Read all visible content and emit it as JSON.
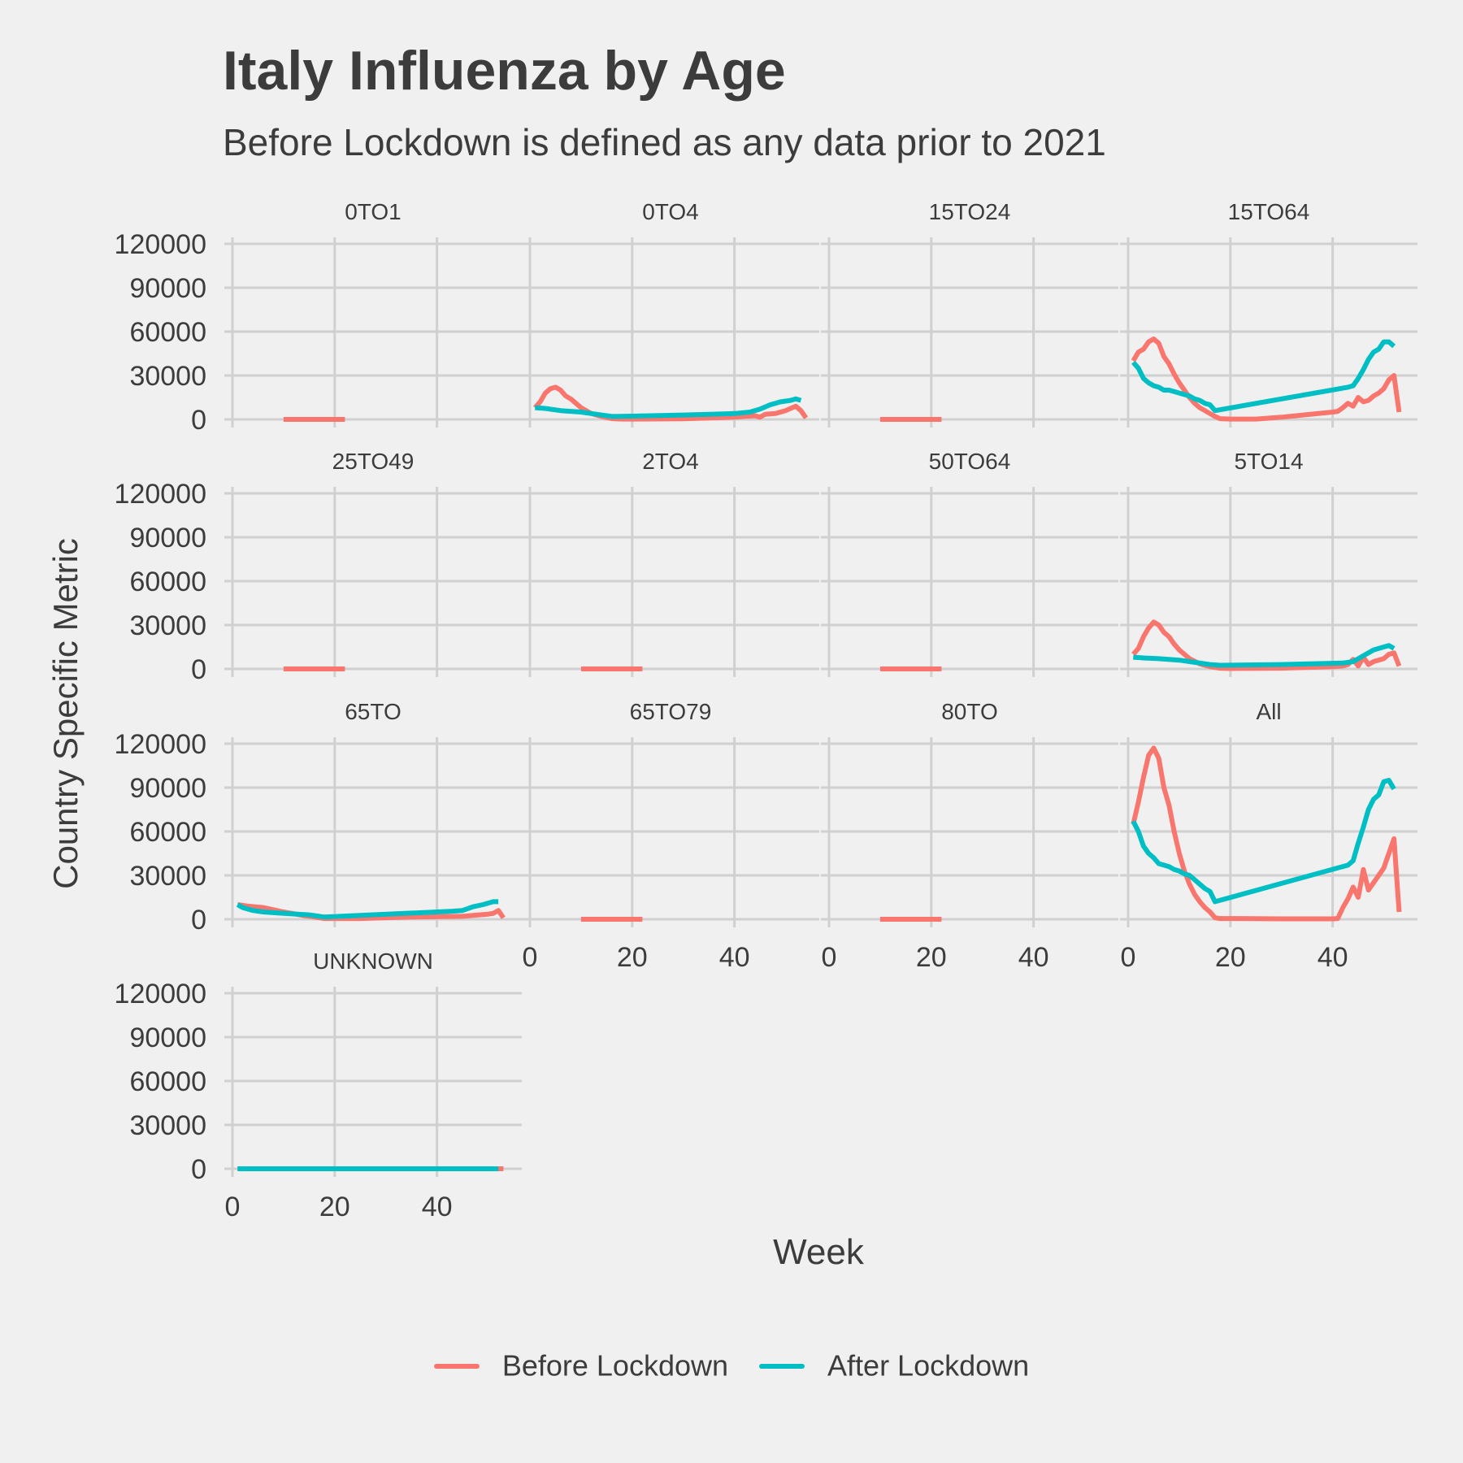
{
  "title": "Italy Influenza by Age",
  "subtitle": "Before Lockdown is defined as any data prior to 2021",
  "colors": {
    "before": "#F8766D",
    "after": "#00BFC4",
    "background": "#f0f0f0",
    "grid": "#d0d0d0",
    "text": "#3c3c3c"
  },
  "legend": {
    "placement": "bottom",
    "items": [
      {
        "label": "Before Lockdown",
        "color": "#F8766D"
      },
      {
        "label": "After Lockdown",
        "color": "#00BFC4"
      }
    ]
  },
  "chart_data": {
    "type": "line",
    "title": "Italy Influenza by Age",
    "subtitle": "Before Lockdown is defined as any data prior to 2021",
    "xlabel": "Week",
    "ylabel": "Country Specific Metric",
    "xlim": [
      0,
      55
    ],
    "ylim": [
      0,
      120000
    ],
    "x_ticks": [
      0,
      20,
      40
    ],
    "y_ticks": [
      0,
      30000,
      60000,
      90000,
      120000
    ],
    "y_tick_labels": [
      "0",
      "30000",
      "60000",
      "90000",
      "120000"
    ],
    "grid": true,
    "legend_placement": "bottom",
    "facets": [
      {
        "label": "0TO1",
        "before": [
          [
            10,
            0
          ],
          [
            22,
            0
          ]
        ],
        "after": []
      },
      {
        "label": "0TO4",
        "before": [
          [
            1,
            8000
          ],
          [
            2,
            12000
          ],
          [
            3,
            18000
          ],
          [
            4,
            21000
          ],
          [
            5,
            22000
          ],
          [
            6,
            20000
          ],
          [
            7,
            16000
          ],
          [
            8,
            14000
          ],
          [
            9,
            11000
          ],
          [
            10,
            8000
          ],
          [
            12,
            4000
          ],
          [
            14,
            2000
          ],
          [
            16,
            500
          ],
          [
            18,
            200
          ],
          [
            20,
            200
          ],
          [
            30,
            400
          ],
          [
            40,
            1500
          ],
          [
            44,
            2500
          ],
          [
            45,
            1500
          ],
          [
            46,
            3500
          ],
          [
            48,
            4000
          ],
          [
            50,
            6000
          ],
          [
            52,
            9000
          ],
          [
            53,
            6000
          ],
          [
            54,
            1000
          ]
        ],
        "after": [
          [
            1,
            8000
          ],
          [
            3,
            7500
          ],
          [
            6,
            6000
          ],
          [
            10,
            5000
          ],
          [
            13,
            3500
          ],
          [
            16,
            2000
          ],
          [
            20,
            2200
          ],
          [
            30,
            3000
          ],
          [
            40,
            4000
          ],
          [
            43,
            5000
          ],
          [
            45,
            7000
          ],
          [
            47,
            10000
          ],
          [
            49,
            12000
          ],
          [
            51,
            13000
          ],
          [
            52,
            14000
          ],
          [
            53,
            13000
          ]
        ]
      },
      {
        "label": "15TO24",
        "before": [
          [
            10,
            0
          ],
          [
            22,
            0
          ]
        ],
        "after": []
      },
      {
        "label": "15TO64",
        "before": [
          [
            1,
            40000
          ],
          [
            2,
            46000
          ],
          [
            3,
            48000
          ],
          [
            4,
            53000
          ],
          [
            5,
            55000
          ],
          [
            6,
            52000
          ],
          [
            7,
            43000
          ],
          [
            8,
            38000
          ],
          [
            9,
            31000
          ],
          [
            10,
            25000
          ],
          [
            11,
            20000
          ],
          [
            12,
            15000
          ],
          [
            13,
            11000
          ],
          [
            14,
            8000
          ],
          [
            15,
            6000
          ],
          [
            16,
            4000
          ],
          [
            17,
            2000
          ],
          [
            18,
            500
          ],
          [
            20,
            200
          ],
          [
            25,
            200
          ],
          [
            30,
            1500
          ],
          [
            40,
            5000
          ],
          [
            41,
            5500
          ],
          [
            42,
            8000
          ],
          [
            43,
            11000
          ],
          [
            44,
            9000
          ],
          [
            45,
            15000
          ],
          [
            46,
            12000
          ],
          [
            47,
            13000
          ],
          [
            48,
            16000
          ],
          [
            49,
            18000
          ],
          [
            50,
            21000
          ],
          [
            51,
            27000
          ],
          [
            52,
            30000
          ],
          [
            53,
            5000
          ]
        ],
        "after": [
          [
            1,
            39000
          ],
          [
            2,
            35000
          ],
          [
            3,
            28000
          ],
          [
            4,
            25000
          ],
          [
            5,
            23000
          ],
          [
            6,
            22000
          ],
          [
            7,
            20000
          ],
          [
            8,
            20000
          ],
          [
            9,
            19000
          ],
          [
            10,
            18000
          ],
          [
            11,
            17000
          ],
          [
            12,
            16000
          ],
          [
            13,
            14000
          ],
          [
            14,
            13000
          ],
          [
            15,
            11000
          ],
          [
            16,
            10000
          ],
          [
            17,
            6000
          ],
          [
            43,
            22000
          ],
          [
            44,
            23000
          ],
          [
            45,
            28000
          ],
          [
            46,
            34000
          ],
          [
            47,
            41000
          ],
          [
            48,
            46000
          ],
          [
            49,
            48000
          ],
          [
            50,
            53000
          ],
          [
            51,
            53000
          ],
          [
            52,
            50000
          ]
        ]
      },
      {
        "label": "25TO49",
        "before": [
          [
            10,
            0
          ],
          [
            22,
            0
          ]
        ],
        "after": []
      },
      {
        "label": "2TO4",
        "before": [
          [
            10,
            0
          ],
          [
            22,
            0
          ]
        ],
        "after": []
      },
      {
        "label": "50TO64",
        "before": [
          [
            10,
            0
          ],
          [
            22,
            0
          ]
        ],
        "after": []
      },
      {
        "label": "5TO14",
        "before": [
          [
            1,
            10000
          ],
          [
            2,
            14000
          ],
          [
            3,
            22000
          ],
          [
            4,
            28000
          ],
          [
            5,
            32000
          ],
          [
            6,
            30000
          ],
          [
            7,
            25000
          ],
          [
            8,
            22000
          ],
          [
            9,
            17000
          ],
          [
            10,
            13000
          ],
          [
            12,
            7000
          ],
          [
            14,
            3500
          ],
          [
            16,
            1500
          ],
          [
            18,
            500
          ],
          [
            20,
            300
          ],
          [
            30,
            500
          ],
          [
            40,
            1500
          ],
          [
            42,
            2000
          ],
          [
            43,
            3000
          ],
          [
            44,
            6500
          ],
          [
            45,
            2000
          ],
          [
            46,
            8000
          ],
          [
            47,
            3000
          ],
          [
            48,
            5000
          ],
          [
            50,
            7000
          ],
          [
            51,
            10000
          ],
          [
            52,
            11000
          ],
          [
            53,
            2000
          ]
        ],
        "after": [
          [
            1,
            8000
          ],
          [
            3,
            7500
          ],
          [
            6,
            7000
          ],
          [
            10,
            6000
          ],
          [
            13,
            4500
          ],
          [
            16,
            3000
          ],
          [
            18,
            2500
          ],
          [
            30,
            3000
          ],
          [
            42,
            4000
          ],
          [
            44,
            5000
          ],
          [
            46,
            9000
          ],
          [
            48,
            13000
          ],
          [
            50,
            15000
          ],
          [
            51,
            16000
          ],
          [
            52,
            14000
          ]
        ]
      },
      {
        "label": "65TO",
        "before": [
          [
            1,
            10000
          ],
          [
            3,
            9000
          ],
          [
            6,
            8000
          ],
          [
            10,
            5000
          ],
          [
            14,
            2500
          ],
          [
            18,
            500
          ],
          [
            25,
            500
          ],
          [
            35,
            1500
          ],
          [
            45,
            2000
          ],
          [
            50,
            3500
          ],
          [
            51,
            4000
          ],
          [
            52,
            6000
          ],
          [
            53,
            1000
          ]
        ],
        "after": [
          [
            1,
            10000
          ],
          [
            2,
            8000
          ],
          [
            4,
            6000
          ],
          [
            6,
            5000
          ],
          [
            10,
            4000
          ],
          [
            15,
            3000
          ],
          [
            18,
            1500
          ],
          [
            43,
            5500
          ],
          [
            45,
            6000
          ],
          [
            47,
            8500
          ],
          [
            49,
            10000
          ],
          [
            51,
            12000
          ],
          [
            52,
            12000
          ]
        ]
      },
      {
        "label": "65TO79",
        "before": [
          [
            10,
            0
          ],
          [
            22,
            0
          ]
        ],
        "after": []
      },
      {
        "label": "80TO",
        "before": [
          [
            10,
            0
          ],
          [
            22,
            0
          ]
        ],
        "after": []
      },
      {
        "label": "All",
        "before": [
          [
            1,
            65000
          ],
          [
            2,
            80000
          ],
          [
            3,
            97000
          ],
          [
            4,
            112000
          ],
          [
            5,
            117000
          ],
          [
            6,
            110000
          ],
          [
            7,
            90000
          ],
          [
            8,
            78000
          ],
          [
            9,
            60000
          ],
          [
            10,
            45000
          ],
          [
            11,
            33000
          ],
          [
            12,
            24000
          ],
          [
            13,
            17000
          ],
          [
            14,
            12000
          ],
          [
            15,
            8000
          ],
          [
            16,
            5000
          ],
          [
            17,
            1000
          ],
          [
            18,
            500
          ],
          [
            20,
            500
          ],
          [
            30,
            300
          ],
          [
            40,
            300
          ],
          [
            41,
            500
          ],
          [
            42,
            8000
          ],
          [
            43,
            14000
          ],
          [
            44,
            22000
          ],
          [
            45,
            15000
          ],
          [
            46,
            34000
          ],
          [
            47,
            20000
          ],
          [
            48,
            25000
          ],
          [
            49,
            30000
          ],
          [
            50,
            35000
          ],
          [
            51,
            45000
          ],
          [
            52,
            55000
          ],
          [
            53,
            5000
          ]
        ],
        "after": [
          [
            1,
            67000
          ],
          [
            2,
            60000
          ],
          [
            3,
            50000
          ],
          [
            4,
            45000
          ],
          [
            5,
            42000
          ],
          [
            6,
            38000
          ],
          [
            7,
            37000
          ],
          [
            8,
            36000
          ],
          [
            9,
            34000
          ],
          [
            10,
            33000
          ],
          [
            11,
            31000
          ],
          [
            12,
            30000
          ],
          [
            13,
            27000
          ],
          [
            14,
            24000
          ],
          [
            15,
            21000
          ],
          [
            16,
            19000
          ],
          [
            17,
            12000
          ],
          [
            43,
            37000
          ],
          [
            44,
            40000
          ],
          [
            45,
            52000
          ],
          [
            46,
            63000
          ],
          [
            47,
            75000
          ],
          [
            48,
            82000
          ],
          [
            49,
            85000
          ],
          [
            50,
            94000
          ],
          [
            51,
            95000
          ],
          [
            52,
            89000
          ]
        ]
      },
      {
        "label": "UNKNOWN",
        "before": [
          [
            1,
            0
          ],
          [
            53,
            0
          ]
        ],
        "after": [
          [
            1,
            0
          ],
          [
            52,
            0
          ]
        ]
      }
    ]
  }
}
